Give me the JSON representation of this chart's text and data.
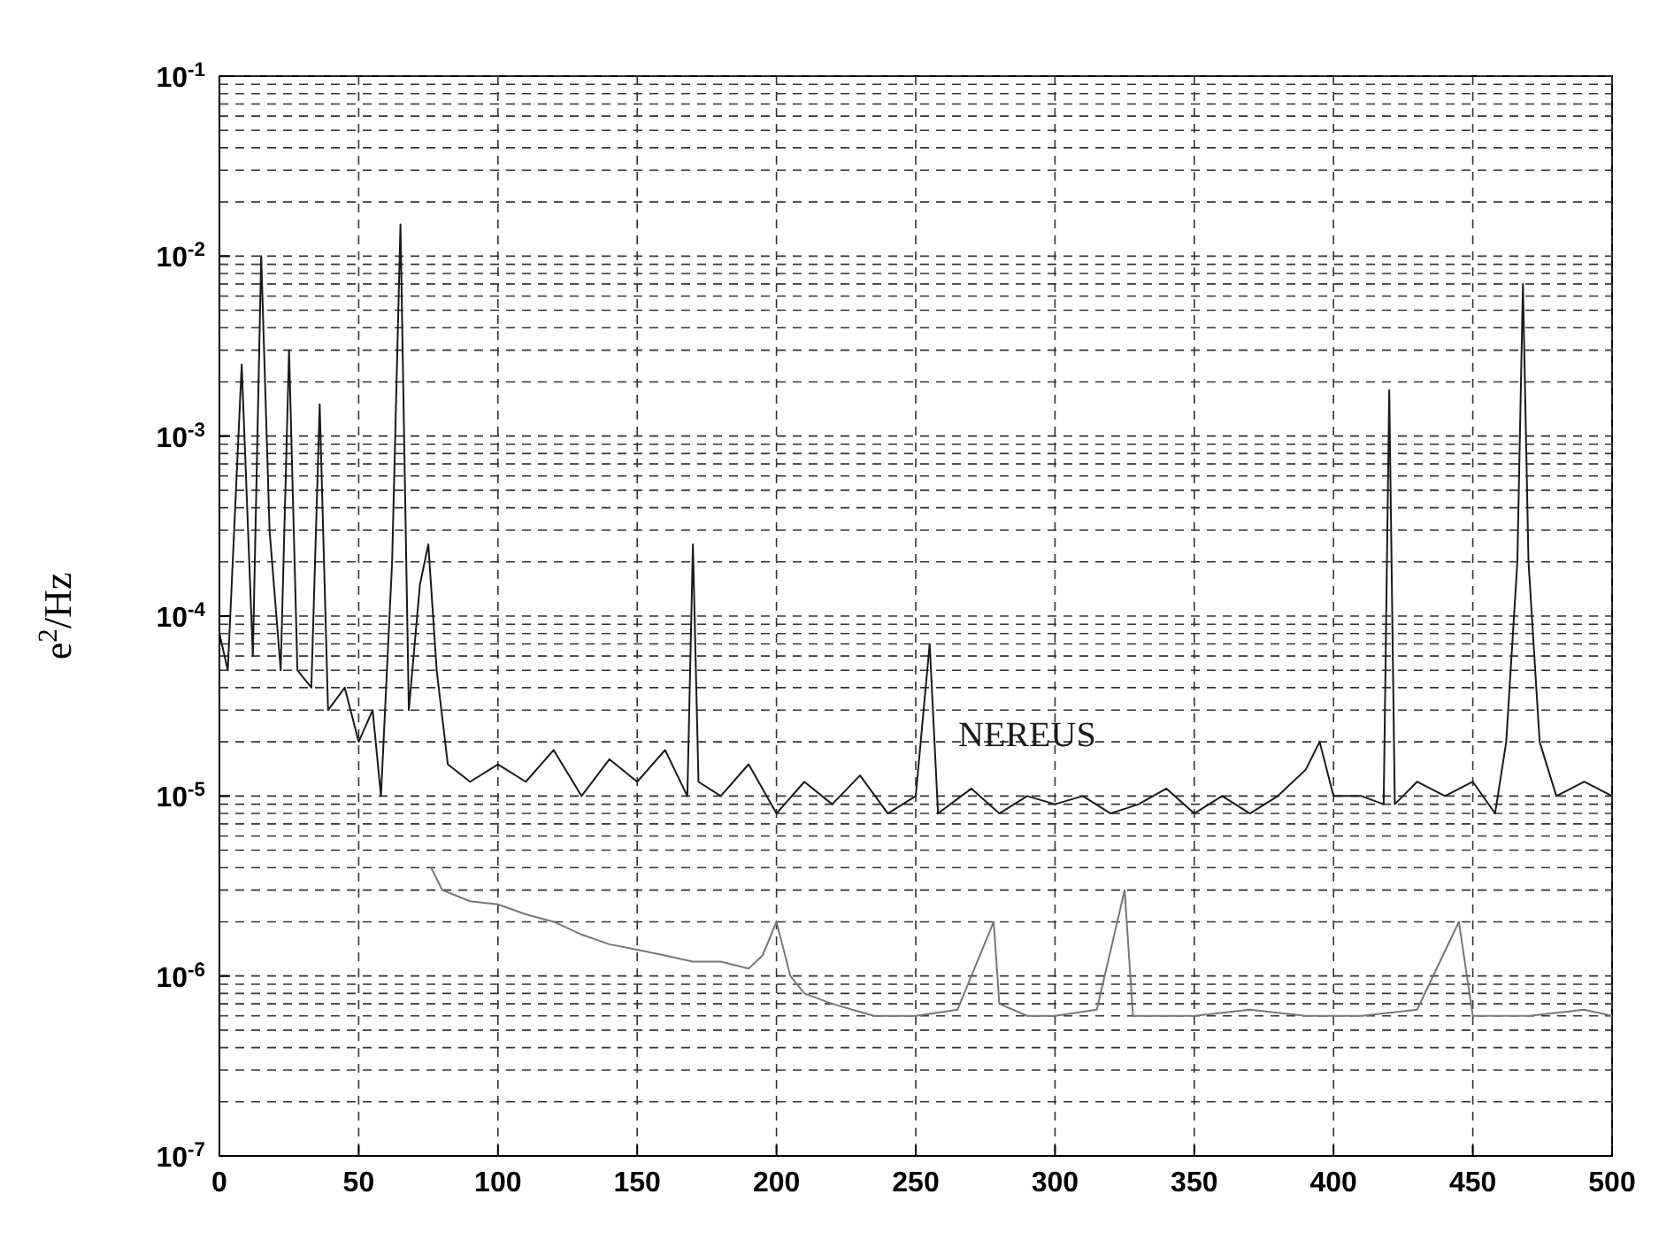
{
  "chart_data": {
    "type": "line",
    "ylabel": "e$^{2}$/Hz",
    "log": "y",
    "grid": true,
    "line_style": "solid",
    "xlim": [
      0,
      500
    ],
    "xticks": [
      0,
      50,
      100,
      150,
      200,
      250,
      300,
      350,
      400,
      450,
      500
    ],
    "ylim": [
      1e-07,
      0.1
    ],
    "yticks": [
      {
        "value": 1e-07,
        "label": "10$^{-7}$"
      },
      {
        "value": 1e-06,
        "label": "10$^{-6}$"
      },
      {
        "value": 1e-05,
        "label": "10$^{-5}$"
      },
      {
        "value": 0.0001,
        "label": "10$^{-4}$"
      },
      {
        "value": 0.001,
        "label": "10$^{-3}$"
      },
      {
        "value": 0.01,
        "label": "10$^{-2}$"
      },
      {
        "value": 0.1,
        "label": "10$^{-1}$"
      }
    ],
    "series": [
      {
        "name": "NEREUS",
        "color": "#1a1a1a",
        "x": [
          0,
          3,
          8,
          12,
          15,
          18,
          22,
          25,
          28,
          33,
          36,
          39,
          45,
          50,
          55,
          58,
          62,
          65,
          68,
          72,
          75,
          78,
          82,
          90,
          100,
          110,
          120,
          130,
          140,
          150,
          160,
          168,
          170,
          172,
          180,
          190,
          200,
          210,
          220,
          230,
          240,
          250,
          255,
          258,
          270,
          280,
          290,
          300,
          310,
          320,
          330,
          340,
          350,
          360,
          370,
          380,
          390,
          395,
          400,
          410,
          418,
          420,
          422,
          430,
          440,
          450,
          458,
          462,
          466,
          468,
          470,
          474,
          480,
          490,
          500
        ],
        "values": [
          8e-05,
          5e-05,
          0.0025,
          6e-05,
          0.01,
          0.0003,
          5e-05,
          0.003,
          5e-05,
          4e-05,
          0.0015,
          3e-05,
          4e-05,
          2e-05,
          3e-05,
          1e-05,
          0.0002,
          0.015,
          3e-05,
          0.00015,
          0.00025,
          5e-05,
          1.5e-05,
          1.2e-05,
          1.5e-05,
          1.2e-05,
          1.8e-05,
          1e-05,
          1.6e-05,
          1.2e-05,
          1.8e-05,
          1e-05,
          0.00025,
          1.2e-05,
          1e-05,
          1.5e-05,
          8e-06,
          1.2e-05,
          9e-06,
          1.3e-05,
          8e-06,
          1e-05,
          7e-05,
          8e-06,
          1.1e-05,
          8e-06,
          1e-05,
          9e-06,
          1e-05,
          8e-06,
          9e-06,
          1.1e-05,
          8e-06,
          1e-05,
          8e-06,
          1e-05,
          1.4e-05,
          2e-05,
          1e-05,
          1e-05,
          9e-06,
          0.0018,
          9e-06,
          1.2e-05,
          1e-05,
          1.2e-05,
          8e-06,
          2e-05,
          0.0002,
          0.007,
          0.0002,
          2e-05,
          1e-05,
          1.2e-05,
          1e-05
        ]
      },
      {
        "color": "#777777",
        "x": [
          76,
          80,
          90,
          100,
          110,
          120,
          130,
          140,
          150,
          160,
          170,
          180,
          190,
          195,
          200,
          205,
          210,
          220,
          235,
          250,
          265,
          278,
          280,
          290,
          300,
          315,
          325,
          328,
          340,
          350,
          370,
          390,
          410,
          430,
          445,
          450,
          470,
          490,
          500
        ],
        "values": [
          4e-06,
          3e-06,
          2.6e-06,
          2.5e-06,
          2.2e-06,
          2e-06,
          1.7e-06,
          1.5e-06,
          1.4e-06,
          1.3e-06,
          1.2e-06,
          1.2e-06,
          1.1e-06,
          1.3e-06,
          2e-06,
          1e-06,
          8e-07,
          7e-07,
          6e-07,
          6e-07,
          6.5e-07,
          2e-06,
          7e-07,
          6e-07,
          6e-07,
          6.5e-07,
          3e-06,
          6e-07,
          6e-07,
          6e-07,
          6.5e-07,
          6e-07,
          6e-07,
          6.5e-07,
          2e-06,
          6e-07,
          6e-07,
          6.5e-07,
          6e-07
        ]
      }
    ]
  }
}
